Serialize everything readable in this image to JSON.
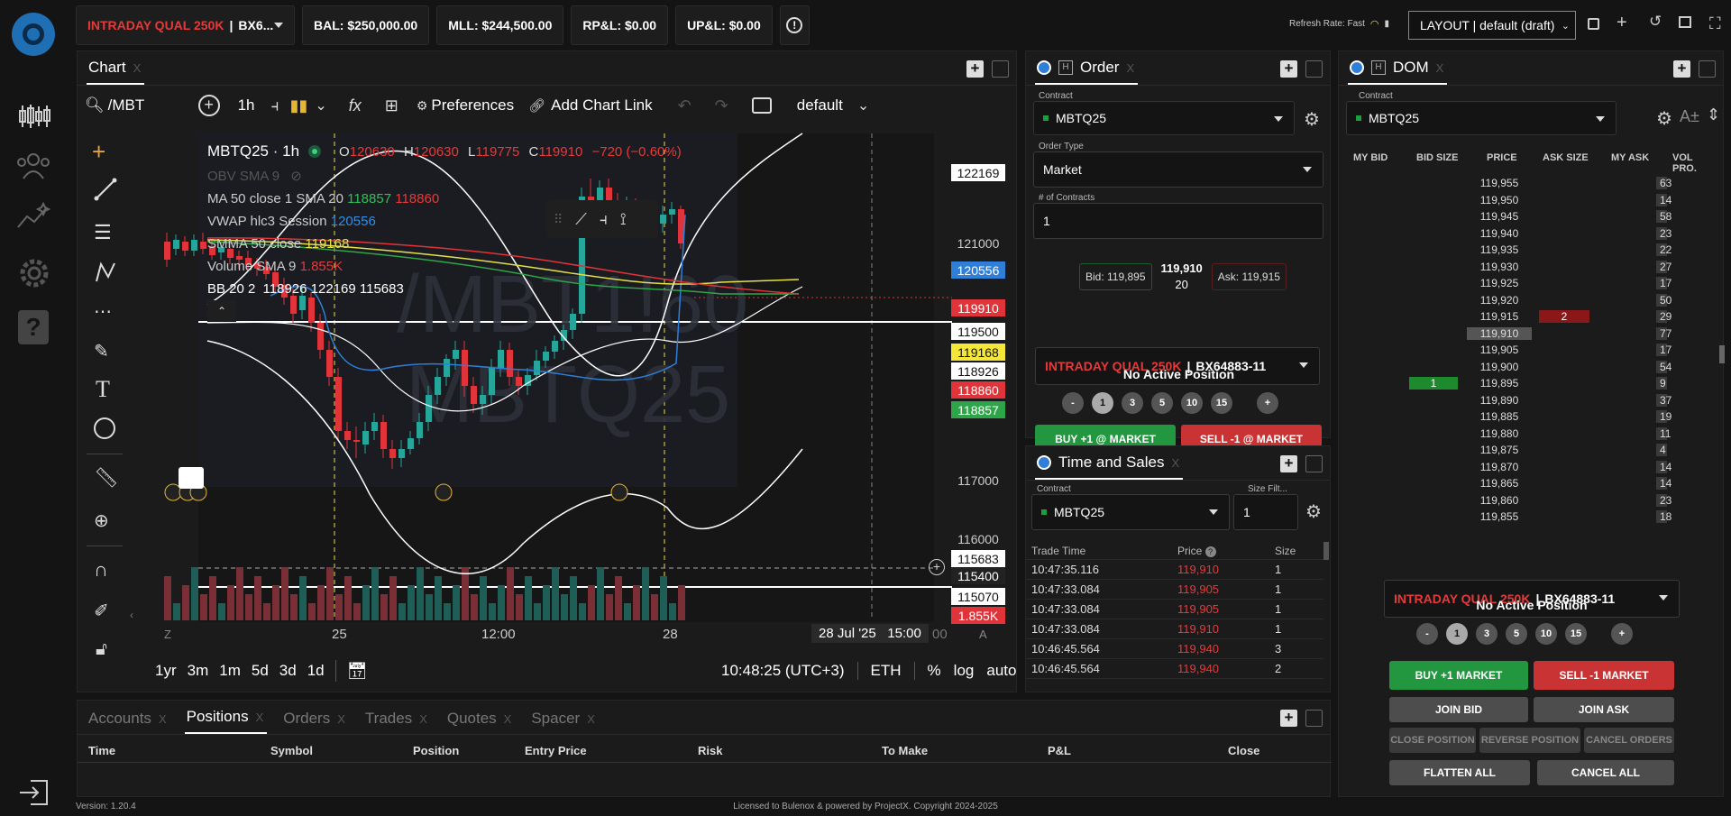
{
  "topbar": {
    "account_label": "INTRADAY QUAL 250K",
    "account_id": "BX6...",
    "balance": "BAL: $250,000.00",
    "mll": "MLL: $244,500.00",
    "rpl": "RP&L: $0.00",
    "upl": "UP&L: $0.00",
    "refresh_rate": "Refresh Rate: Fast",
    "layout": "LAYOUT | default (draft)"
  },
  "chart": {
    "tab": "Chart",
    "symbol_search": "/MBT",
    "interval": "1h",
    "preferences": "Preferences",
    "add_chart_link": "Add Chart Link",
    "template": "default",
    "title": "MBTQ25 · 1h",
    "ohlc": {
      "o_label": "O",
      "o": "120630",
      "h_label": "H",
      "h": "120630",
      "l_label": "L",
      "l": "119775",
      "c_label": "C",
      "c": "119910",
      "change": "−720 (−0.60%)"
    },
    "indicators": {
      "obv": "OBV SMA 9",
      "ma_label": "MA 50 close 1 SMA 20",
      "ma_v1": "118857",
      "ma_v2": "118860",
      "vwap_label": "VWAP hlc3 Session",
      "vwap_v": "120556",
      "smma_label": "SMMA 50 close",
      "smma_v": "119168",
      "volume_label": "Volume SMA 9",
      "volume_v": "1.855K",
      "bb_label": "BB 20 2",
      "bb_v": "118926  122169  115683"
    },
    "watermark1": "/MBT1!60",
    "watermark2": "MBTQ25",
    "price_tags": [
      {
        "v": "122169",
        "bg": "#ffffff",
        "fg": "#111111"
      },
      {
        "v": "121000",
        "bg": "none",
        "fg": "#cccccc"
      },
      {
        "v": "120556",
        "bg": "#2f7fd8",
        "fg": "#ffffff"
      },
      {
        "v": "119910",
        "bg": "#e0343a",
        "fg": "#ffffff"
      },
      {
        "v": "119500",
        "bg": "#ffffff",
        "fg": "#111111"
      },
      {
        "v": "119168",
        "bg": "#f5e63a",
        "fg": "#111111"
      },
      {
        "v": "118926",
        "bg": "#ffffff",
        "fg": "#111111"
      },
      {
        "v": "118860",
        "bg": "#e0343a",
        "fg": "#ffffff"
      },
      {
        "v": "118857",
        "bg": "#2fa54a",
        "fg": "#ffffff"
      },
      {
        "v": "117000",
        "bg": "none",
        "fg": "#cccccc"
      },
      {
        "v": "116000",
        "bg": "none",
        "fg": "#cccccc"
      },
      {
        "v": "115683",
        "bg": "#ffffff",
        "fg": "#111111"
      },
      {
        "v": "115400",
        "bg": "#222222",
        "fg": "#ffffff"
      },
      {
        "v": "115070",
        "bg": "#ffffff",
        "fg": "#111111"
      },
      {
        "v": "1.855K",
        "bg": "#e0343a",
        "fg": "#ffffff"
      }
    ],
    "x_labels": [
      "25",
      "12:00",
      "28"
    ],
    "crosshair_date": "28 Jul '25",
    "crosshair_time": "15:00",
    "x_tail": "00",
    "ranges": [
      "1yr",
      "3m",
      "1m",
      "5d",
      "3d",
      "1d"
    ],
    "clock": "10:48:25 (UTC+3)",
    "session": "ETH",
    "pct": "%",
    "log": "log",
    "auto": "auto",
    "z_label": "Z",
    "a_label": "A"
  },
  "order": {
    "tab": "Order",
    "contract_label": "Contract",
    "contract": "MBTQ25",
    "order_type_label": "Order Type",
    "order_type": "Market",
    "contracts_label": "# of Contracts",
    "contracts": "1",
    "bid": "Bid: 119,895",
    "last": "119,910",
    "last_size": "20",
    "ask": "Ask: 119,915",
    "account": "INTRADAY QUAL 250K",
    "account_id": "BX64883-11",
    "position": "No Active Position",
    "qty": [
      "-",
      "1",
      "3",
      "5",
      "10",
      "15",
      "+"
    ],
    "buy": "BUY +1 @ MARKET",
    "sell": "SELL -1 @ MARKET"
  },
  "ts": {
    "tab": "Time and Sales",
    "contract_label": "Contract",
    "contract": "MBTQ25",
    "size_filter_label": "Size Filt...",
    "size_filter": "1",
    "headers": [
      "Trade Time",
      "Price",
      "Size"
    ],
    "rows": [
      {
        "t": "10:47:35.116",
        "p": "119,910",
        "s": "1"
      },
      {
        "t": "10:47:33.084",
        "p": "119,905",
        "s": "1"
      },
      {
        "t": "10:47:33.084",
        "p": "119,905",
        "s": "1"
      },
      {
        "t": "10:47:33.084",
        "p": "119,910",
        "s": "1"
      },
      {
        "t": "10:46:45.564",
        "p": "119,940",
        "s": "3"
      },
      {
        "t": "10:46:45.564",
        "p": "119,940",
        "s": "2"
      }
    ]
  },
  "dom": {
    "tab": "DOM",
    "contract_label": "Contract",
    "contract": "MBTQ25",
    "headers": [
      "MY BID",
      "BID SIZE",
      "PRICE",
      "ASK SIZE",
      "MY ASK",
      "VOL PRO."
    ],
    "rows": [
      {
        "p": "119,955",
        "v": "63",
        "a": "",
        "b": ""
      },
      {
        "p": "119,950",
        "v": "14",
        "a": "",
        "b": ""
      },
      {
        "p": "119,945",
        "v": "58",
        "a": "",
        "b": ""
      },
      {
        "p": "119,940",
        "v": "23",
        "a": "",
        "b": ""
      },
      {
        "p": "119,935",
        "v": "22",
        "a": "",
        "b": ""
      },
      {
        "p": "119,930",
        "v": "27",
        "a": "",
        "b": ""
      },
      {
        "p": "119,925",
        "v": "17",
        "a": "",
        "b": ""
      },
      {
        "p": "119,920",
        "v": "50",
        "a": "",
        "b": ""
      },
      {
        "p": "119,915",
        "v": "29",
        "a": "2",
        "b": ""
      },
      {
        "p": "119,910",
        "v": "77",
        "a": "",
        "b": ""
      },
      {
        "p": "119,905",
        "v": "17",
        "a": "",
        "b": ""
      },
      {
        "p": "119,900",
        "v": "54",
        "a": "",
        "b": ""
      },
      {
        "p": "119,895",
        "v": "9",
        "a": "",
        "b": "1"
      },
      {
        "p": "119,890",
        "v": "37",
        "a": "",
        "b": ""
      },
      {
        "p": "119,885",
        "v": "19",
        "a": "",
        "b": ""
      },
      {
        "p": "119,880",
        "v": "11",
        "a": "",
        "b": ""
      },
      {
        "p": "119,875",
        "v": "4",
        "a": "",
        "b": ""
      },
      {
        "p": "119,870",
        "v": "14",
        "a": "",
        "b": ""
      },
      {
        "p": "119,865",
        "v": "14",
        "a": "",
        "b": ""
      },
      {
        "p": "119,860",
        "v": "23",
        "a": "",
        "b": ""
      },
      {
        "p": "119,855",
        "v": "18",
        "a": "",
        "b": ""
      }
    ],
    "account": "INTRADAY QUAL 250K",
    "account_id": "BX64883-11",
    "position": "No Active Position",
    "qty": [
      "-",
      "1",
      "3",
      "5",
      "10",
      "15",
      "+"
    ],
    "buy": "BUY +1 MARKET",
    "sell": "SELL -1 MARKET",
    "join_bid": "JOIN BID",
    "join_ask": "JOIN ASK",
    "close_pos": "CLOSE POSITION",
    "reverse_pos": "REVERSE POSITION",
    "cancel_orders": "CANCEL ORDERS",
    "flatten": "FLATTEN ALL",
    "cancel_all": "CANCEL ALL"
  },
  "bottom": {
    "tabs": [
      "Accounts",
      "Positions",
      "Orders",
      "Trades",
      "Quotes",
      "Spacer"
    ],
    "columns": [
      "Time",
      "Symbol",
      "Position",
      "Entry Price",
      "Risk",
      "To Make",
      "P&L",
      "Close"
    ]
  },
  "footer": {
    "version": "Version: 1.20.4",
    "license": "Licensed to Bulenox & powered by ProjectX. Copyright 2024-2025"
  }
}
